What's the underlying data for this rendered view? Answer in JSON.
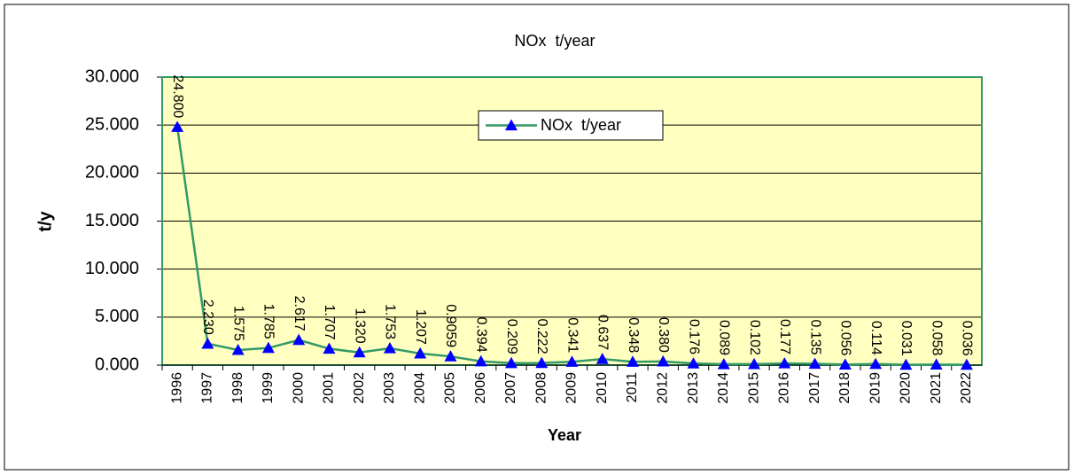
{
  "chart_data": {
    "type": "line",
    "title": "NOx  t/year",
    "x_label": "Year",
    "y_label": "t/y",
    "categories": [
      "1996",
      "1997",
      "1998",
      "1999",
      "2000",
      "2001",
      "2002",
      "2003",
      "2004",
      "2005",
      "2006",
      "2007",
      "2008",
      "2009",
      "2010",
      "2011",
      "2012",
      "2013",
      "2014",
      "2015",
      "2016",
      "2017",
      "2018",
      "2019",
      "2020",
      "2021",
      "2022"
    ],
    "series": [
      {
        "name": "NOx  t/year",
        "color": "#339966",
        "marker_color": "#0000ff",
        "values": [
          24.8,
          2.23,
          1.575,
          1.785,
          2.617,
          1.707,
          1.32,
          1.753,
          1.207,
          0.9059,
          0.394,
          0.209,
          0.222,
          0.341,
          0.637,
          0.348,
          0.38,
          0.176,
          0.089,
          0.102,
          0.177,
          0.135,
          0.056,
          0.114,
          0.031,
          0.058,
          0.036
        ],
        "value_labels": [
          "24.800",
          "2.230",
          "1.575",
          "1.785",
          "2.617",
          "1.707",
          "1.320",
          "1.753",
          "1.207",
          "0.9059",
          "0.394",
          "0.209",
          "0.222",
          "0.341",
          "0.637",
          "0.348",
          "0.380",
          "0.176",
          "0.089",
          "0.102",
          "0.177",
          "0.135",
          "0.056",
          "0.114",
          "0.031",
          "0.058",
          "0.036"
        ]
      }
    ],
    "ylim": [
      0,
      30
    ],
    "yticks": [
      {
        "value": 0,
        "label": "0.000"
      },
      {
        "value": 5,
        "label": "5.000"
      },
      {
        "value": 10,
        "label": "10.000"
      },
      {
        "value": 15,
        "label": "15.000"
      },
      {
        "value": 20,
        "label": "20.000"
      },
      {
        "value": 25,
        "label": "25.000"
      },
      {
        "value": 30,
        "label": "30.000"
      }
    ],
    "grid": true,
    "plot_background": "#ffffc0",
    "legend": "top-center"
  }
}
